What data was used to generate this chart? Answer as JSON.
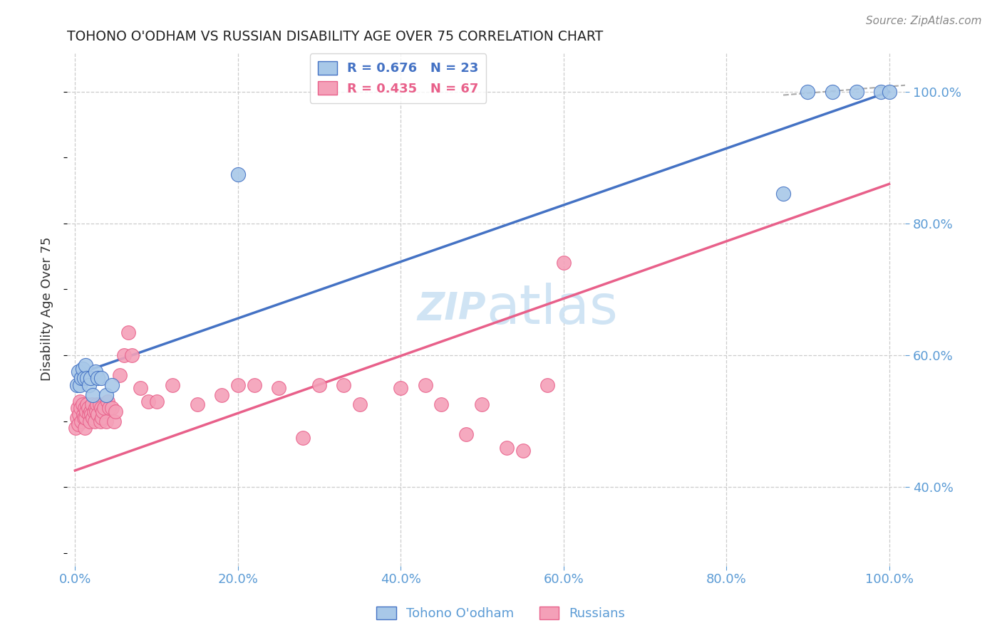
{
  "title": "TOHONO O'ODHAM VS RUSSIAN DISABILITY AGE OVER 75 CORRELATION CHART",
  "source": "Source: ZipAtlas.com",
  "ylabel": "Disability Age Over 75",
  "legend_label_1": "Tohono O'odham",
  "legend_label_2": "Russians",
  "r1": 0.676,
  "n1": 23,
  "r2": 0.435,
  "n2": 67,
  "color1": "#A8C8E8",
  "color2": "#F4A0B8",
  "line_color1": "#4472C4",
  "line_color2": "#E8608A",
  "axis_color": "#5B9BD5",
  "grid_color": "#CCCCCC",
  "watermark_color": "#D0E4F4",
  "blue_line_x0": 0.0,
  "blue_line_y0": 0.57,
  "blue_line_x1": 1.0,
  "blue_line_y1": 1.0,
  "pink_line_x0": 0.0,
  "pink_line_y0": 0.425,
  "pink_line_x1": 1.0,
  "pink_line_y1": 0.86,
  "dash_line_x0": 0.87,
  "dash_line_y0": 0.995,
  "dash_line_x1": 1.02,
  "dash_line_y1": 1.01,
  "ylim_min": 0.28,
  "ylim_max": 1.06,
  "xlim_min": -0.01,
  "xlim_max": 1.02,
  "y_ticks": [
    0.4,
    0.6,
    0.8,
    1.0
  ],
  "y_tick_labels": [
    "40.0%",
    "60.0%",
    "80.0%",
    "100.0%"
  ],
  "x_ticks": [
    0.0,
    0.2,
    0.4,
    0.6,
    0.8,
    1.0
  ],
  "x_tick_labels": [
    "0.0%",
    "20.0%",
    "40.0%",
    "60.0%",
    "80.0%",
    "100.0%"
  ],
  "tohono_x": [
    0.002,
    0.004,
    0.006,
    0.008,
    0.009,
    0.011,
    0.013,
    0.015,
    0.017,
    0.019,
    0.022,
    0.025,
    0.028,
    0.032,
    0.038,
    0.045,
    0.2,
    0.87,
    0.9,
    0.93,
    0.96,
    0.99,
    1.0
  ],
  "tohono_y": [
    0.555,
    0.575,
    0.555,
    0.565,
    0.58,
    0.565,
    0.585,
    0.565,
    0.555,
    0.565,
    0.54,
    0.575,
    0.565,
    0.565,
    0.54,
    0.555,
    0.875,
    0.845,
    1.0,
    1.0,
    1.0,
    1.0,
    1.0
  ],
  "russian_x": [
    0.001,
    0.002,
    0.003,
    0.004,
    0.005,
    0.006,
    0.007,
    0.008,
    0.009,
    0.01,
    0.011,
    0.012,
    0.012,
    0.013,
    0.014,
    0.015,
    0.016,
    0.017,
    0.018,
    0.019,
    0.02,
    0.021,
    0.022,
    0.023,
    0.024,
    0.025,
    0.026,
    0.027,
    0.028,
    0.03,
    0.031,
    0.032,
    0.033,
    0.034,
    0.036,
    0.038,
    0.04,
    0.042,
    0.045,
    0.048,
    0.05,
    0.055,
    0.06,
    0.065,
    0.07,
    0.08,
    0.09,
    0.1,
    0.12,
    0.15,
    0.18,
    0.2,
    0.22,
    0.25,
    0.28,
    0.3,
    0.33,
    0.35,
    0.4,
    0.43,
    0.45,
    0.48,
    0.5,
    0.53,
    0.55,
    0.58,
    0.6
  ],
  "russian_y": [
    0.49,
    0.505,
    0.52,
    0.495,
    0.51,
    0.53,
    0.52,
    0.5,
    0.525,
    0.51,
    0.505,
    0.49,
    0.52,
    0.505,
    0.515,
    0.525,
    0.52,
    0.51,
    0.5,
    0.515,
    0.51,
    0.525,
    0.505,
    0.515,
    0.5,
    0.52,
    0.515,
    0.525,
    0.51,
    0.525,
    0.5,
    0.52,
    0.505,
    0.515,
    0.52,
    0.5,
    0.53,
    0.52,
    0.52,
    0.5,
    0.515,
    0.57,
    0.6,
    0.635,
    0.6,
    0.55,
    0.53,
    0.53,
    0.555,
    0.525,
    0.54,
    0.555,
    0.555,
    0.55,
    0.475,
    0.555,
    0.555,
    0.525,
    0.55,
    0.555,
    0.525,
    0.48,
    0.525,
    0.46,
    0.455,
    0.555,
    0.74
  ]
}
